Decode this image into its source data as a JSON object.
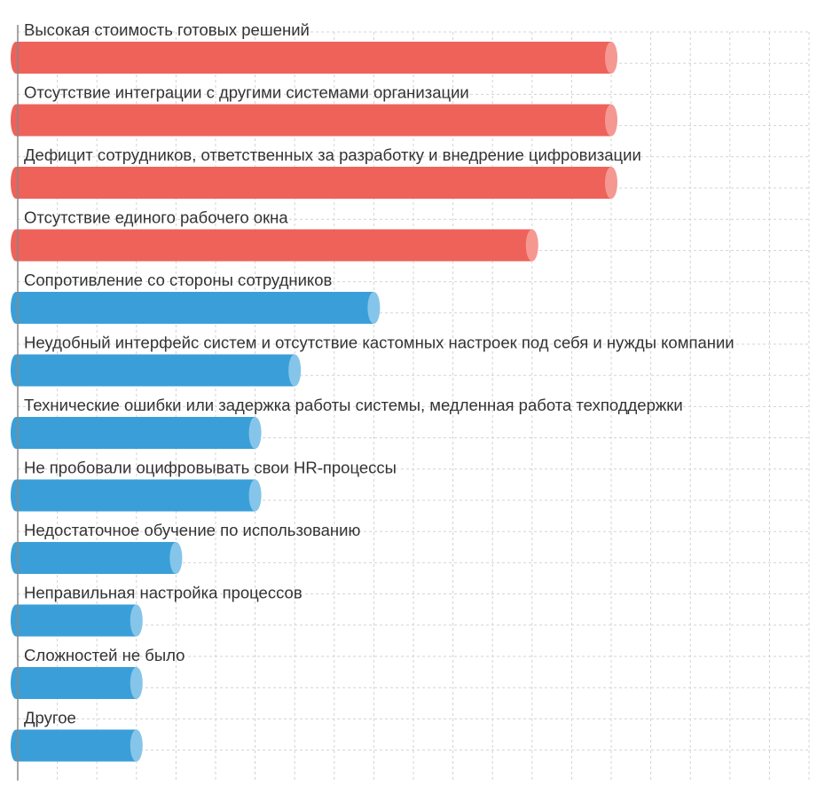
{
  "chart_data": {
    "type": "bar",
    "orientation": "horizontal",
    "title": "",
    "xlabel": "",
    "ylabel": "",
    "grid": true,
    "xlim": [
      0,
      20
    ],
    "categories": [
      "Высокая стоимость готовых решений",
      "Отсутствие интеграции с другими системами организации",
      "Дефицит сотрудников, ответственных за разработку и внедрение цифровизации",
      "Отсутствие единого рабочего окна",
      "Сопротивление со стороны сотрудников",
      "Неудобный интерфейс систем и отсутствие кастомных настроек под себя и нужды компании",
      "Технические ошибки или задержка работы системы, медленная работа техподдержки",
      "Не пробовали оцифровывать свои HR-процессы",
      "Недостаточное обучение по использованию",
      "Неправильная настройка процессов",
      "Сложностей не было",
      "Другое"
    ],
    "values": [
      15,
      15,
      15,
      13,
      9,
      7,
      6,
      6,
      4,
      3,
      3,
      3
    ],
    "groups": [
      "top",
      "top",
      "top",
      "top",
      "other",
      "other",
      "other",
      "other",
      "other",
      "other",
      "other",
      "other"
    ],
    "colors": {
      "top": "#ee625a",
      "top_cap": "#f59892",
      "other": "#3a9fd8",
      "other_cap": "#86c5ea",
      "grid": "#d3d3d3",
      "axis": "#888888"
    }
  }
}
